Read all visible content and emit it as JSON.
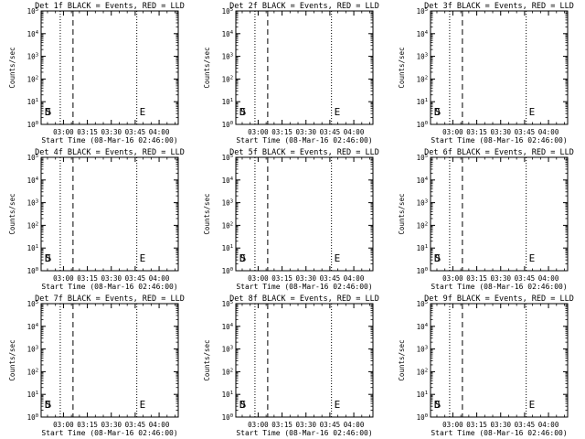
{
  "chart_data": [
    {
      "type": "line",
      "title": "Det 1f BLACK = Events, RED = LLD",
      "xlabel": "Start Time (08-Mar-16 02:46:00)",
      "ylabel": "Counts/sec",
      "x_ticks": [
        "03:00",
        "03:15",
        "03:30",
        "03:45",
        "04:00"
      ],
      "y_ticks": [
        "10^0",
        "10^1",
        "10^2",
        "10^3",
        "10^4",
        "10^5"
      ],
      "xlim": [
        "02:46:00",
        "04:12:00"
      ],
      "ylim": [
        1,
        100000
      ],
      "y_scale": "log",
      "markers": [
        "D",
        "S",
        "E"
      ],
      "series": []
    },
    {
      "type": "line",
      "title": "Det 2f BLACK = Events, RED = LLD",
      "xlabel": "Start Time (08-Mar-16 02:46:00)",
      "ylabel": "Counts/sec",
      "x_ticks": [
        "03:00",
        "03:15",
        "03:30",
        "03:45",
        "04:00"
      ],
      "y_ticks": [
        "10^0",
        "10^1",
        "10^2",
        "10^3",
        "10^4",
        "10^5"
      ],
      "xlim": [
        "02:46:00",
        "04:12:00"
      ],
      "ylim": [
        1,
        100000
      ],
      "y_scale": "log",
      "markers": [
        "D",
        "S",
        "E"
      ],
      "series": []
    },
    {
      "type": "line",
      "title": "Det 3f BLACK = Events, RED = LLD",
      "xlabel": "Start Time (08-Mar-16 02:46:00)",
      "ylabel": "Counts/sec",
      "x_ticks": [
        "03:00",
        "03:15",
        "03:30",
        "03:45",
        "04:00"
      ],
      "y_ticks": [
        "10^0",
        "10^1",
        "10^2",
        "10^3",
        "10^4",
        "10^5"
      ],
      "xlim": [
        "02:46:00",
        "04:12:00"
      ],
      "ylim": [
        1,
        100000
      ],
      "y_scale": "log",
      "markers": [
        "D",
        "S",
        "E"
      ],
      "series": []
    },
    {
      "type": "line",
      "title": "Det 4f BLACK = Events, RED = LLD",
      "xlabel": "Start Time (08-Mar-16 02:46:00)",
      "ylabel": "Counts/sec",
      "x_ticks": [
        "03:00",
        "03:15",
        "03:30",
        "03:45",
        "04:00"
      ],
      "y_ticks": [
        "10^0",
        "10^1",
        "10^2",
        "10^3",
        "10^4",
        "10^5"
      ],
      "xlim": [
        "02:46:00",
        "04:12:00"
      ],
      "ylim": [
        1,
        100000
      ],
      "y_scale": "log",
      "markers": [
        "D",
        "S",
        "E"
      ],
      "series": []
    },
    {
      "type": "line",
      "title": "Det 5f BLACK = Events, RED = LLD",
      "xlabel": "Start Time (08-Mar-16 02:46:00)",
      "ylabel": "Counts/sec",
      "x_ticks": [
        "03:00",
        "03:15",
        "03:30",
        "03:45",
        "04:00"
      ],
      "y_ticks": [
        "10^0",
        "10^1",
        "10^2",
        "10^3",
        "10^4",
        "10^5"
      ],
      "xlim": [
        "02:46:00",
        "04:12:00"
      ],
      "ylim": [
        1,
        100000
      ],
      "y_scale": "log",
      "markers": [
        "D",
        "S",
        "E"
      ],
      "series": []
    },
    {
      "type": "line",
      "title": "Det 6f BLACK = Events, RED = LLD",
      "xlabel": "Start Time (08-Mar-16 02:46:00)",
      "ylabel": "Counts/sec",
      "x_ticks": [
        "03:00",
        "03:15",
        "03:30",
        "03:45",
        "04:00"
      ],
      "y_ticks": [
        "10^0",
        "10^1",
        "10^2",
        "10^3",
        "10^4",
        "10^5"
      ],
      "xlim": [
        "02:46:00",
        "04:12:00"
      ],
      "ylim": [
        1,
        100000
      ],
      "y_scale": "log",
      "markers": [
        "D",
        "S",
        "E"
      ],
      "series": []
    },
    {
      "type": "line",
      "title": "Det 7f BLACK = Events, RED = LLD",
      "xlabel": "Start Time (08-Mar-16 02:46:00)",
      "ylabel": "Counts/sec",
      "x_ticks": [
        "03:00",
        "03:15",
        "03:30",
        "03:45",
        "04:00"
      ],
      "y_ticks": [
        "10^0",
        "10^1",
        "10^2",
        "10^3",
        "10^4",
        "10^5"
      ],
      "xlim": [
        "02:46:00",
        "04:12:00"
      ],
      "ylim": [
        1,
        100000
      ],
      "y_scale": "log",
      "markers": [
        "D",
        "S",
        "E"
      ],
      "series": []
    },
    {
      "type": "line",
      "title": "Det 8f BLACK = Events, RED = LLD",
      "xlabel": "Start Time (08-Mar-16 02:46:00)",
      "ylabel": "Counts/sec",
      "x_ticks": [
        "03:00",
        "03:15",
        "03:30",
        "03:45",
        "04:00"
      ],
      "y_ticks": [
        "10^0",
        "10^1",
        "10^2",
        "10^3",
        "10^4",
        "10^5"
      ],
      "xlim": [
        "02:46:00",
        "04:12:00"
      ],
      "ylim": [
        1,
        100000
      ],
      "y_scale": "log",
      "markers": [
        "D",
        "S",
        "E"
      ],
      "series": []
    },
    {
      "type": "line",
      "title": "Det 9f BLACK = Events, RED = LLD",
      "xlabel": "Start Time (08-Mar-16 02:46:00)",
      "ylabel": "Counts/sec",
      "x_ticks": [
        "03:00",
        "03:15",
        "03:30",
        "03:45",
        "04:00"
      ],
      "y_ticks": [
        "10^0",
        "10^1",
        "10^2",
        "10^3",
        "10^4",
        "10^5"
      ],
      "xlim": [
        "02:46:00",
        "04:12:00"
      ],
      "ylim": [
        1,
        100000
      ],
      "y_scale": "log",
      "markers": [
        "D",
        "S",
        "E"
      ],
      "series": []
    }
  ],
  "time_markers": [
    {
      "label": "D",
      "time": "02:46:30",
      "style": "none"
    },
    {
      "label": "S",
      "time": "02:47:00",
      "style": "none"
    },
    {
      "label": "",
      "time": "02:58:00",
      "style": "dotted"
    },
    {
      "label": "",
      "time": "03:06:00",
      "style": "dashed"
    },
    {
      "label": "E",
      "time": "03:46:00",
      "style": "dotted"
    }
  ],
  "grid": false,
  "colors": {
    "axes": "#000000",
    "background": "#ffffff",
    "events": "#000000",
    "lld": "#ff0000"
  }
}
